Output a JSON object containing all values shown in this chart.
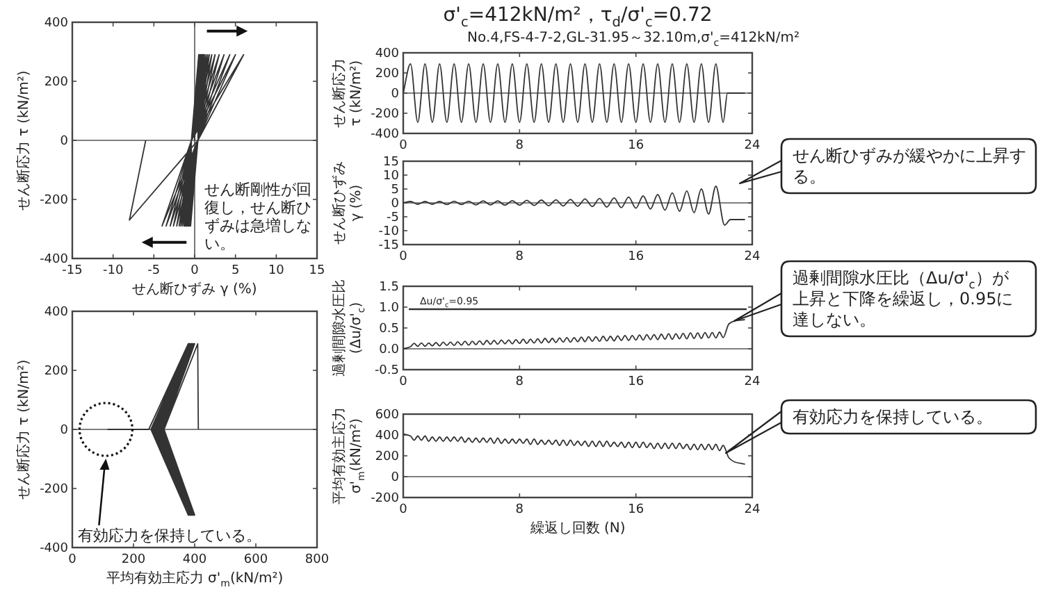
{
  "chart_data": [
    {
      "type": "line",
      "xlabel": "せん断ひずみ γ (%)",
      "ylabel": "せん断応力 τ (kN/m²)",
      "xlim": [
        -15,
        15
      ],
      "ylim": [
        -400,
        400
      ],
      "xticks": [
        -15,
        -10,
        -5,
        0,
        5,
        10,
        15
      ],
      "yticks": [
        -400,
        -200,
        0,
        200,
        400
      ],
      "color": "#333333",
      "x": [
        0,
        0.5,
        0.4,
        -0.5,
        -0.4,
        0.5,
        0.4,
        -0.5,
        -0.4,
        0.5,
        0.4,
        -0.6,
        -0.4,
        0.6,
        0.4,
        -0.6,
        -0.4,
        0.6,
        0.4,
        -0.7,
        -0.4,
        0.7,
        0.4,
        -0.7,
        -0.4,
        0.7,
        0.4,
        -0.8,
        -0.4,
        0.8,
        0.4,
        -0.8,
        -0.4,
        0.9,
        0.4,
        -0.9,
        -0.4,
        1.0,
        0.4,
        -1.0,
        -0.4,
        1.1,
        0.4,
        -1.1,
        -0.4,
        1.2,
        0.4,
        -1.2,
        -0.4,
        1.4,
        0.4,
        -1.3,
        -0.4,
        1.6,
        0.4,
        -1.5,
        -0.4,
        1.8,
        0.4,
        -1.7,
        -0.4,
        2.1,
        0.4,
        -1.9,
        -0.4,
        2.5,
        0.4,
        -2.2,
        -0.4,
        3.0,
        0.4,
        -2.6,
        -0.4,
        3.6,
        0.4,
        -3.0,
        -0.4,
        4.3,
        0.4,
        -3.5,
        -0.4,
        5.0,
        0.4,
        -4.0,
        -0.4,
        6.0,
        0.4,
        -8.0,
        -6.0
      ],
      "values": [
        0,
        290,
        0,
        -290,
        0,
        290,
        0,
        -290,
        0,
        290,
        0,
        -290,
        0,
        290,
        0,
        -290,
        0,
        290,
        0,
        -290,
        0,
        290,
        0,
        -290,
        0,
        290,
        0,
        -290,
        0,
        290,
        0,
        -290,
        0,
        290,
        0,
        -290,
        0,
        290,
        0,
        -290,
        0,
        290,
        0,
        -290,
        0,
        290,
        0,
        -290,
        0,
        290,
        0,
        -290,
        0,
        290,
        0,
        -290,
        0,
        290,
        0,
        -290,
        0,
        290,
        0,
        -290,
        0,
        290,
        0,
        -290,
        0,
        290,
        0,
        -290,
        0,
        290,
        0,
        -290,
        0,
        290,
        0,
        -290,
        0,
        290,
        0,
        -290,
        0,
        290,
        0,
        -270,
        0
      ],
      "annotations": [
        "せん断剛性が回復し，せん断ひずみは急増しない。"
      ]
    },
    {
      "type": "line",
      "xlabel": "平均有効主応力 σ'$_{m}$(kN/m²)",
      "ylabel": "せん断応力 τ (kN/m²)",
      "xlim": [
        0,
        800
      ],
      "ylim": [
        -400,
        400
      ],
      "xticks": [
        0,
        200,
        400,
        600,
        800
      ],
      "yticks": [
        -400,
        -200,
        0,
        200,
        400
      ],
      "color": "#333333",
      "x": [
        412,
        410,
        300,
        400,
        299,
        400,
        298,
        399,
        297,
        399,
        296,
        398,
        295,
        398,
        294,
        397,
        293,
        397,
        292,
        396,
        291,
        396,
        290,
        395,
        289,
        395,
        288,
        394,
        287,
        394,
        286,
        393,
        285,
        393,
        284,
        392,
        283,
        392,
        282,
        391,
        281,
        391,
        280,
        390,
        279,
        390,
        278,
        389,
        277,
        389,
        276,
        388,
        275,
        388,
        274,
        387,
        273,
        387,
        272,
        386,
        271,
        386,
        270,
        385,
        269,
        385,
        268,
        384,
        267,
        384,
        266,
        383,
        265,
        383,
        264,
        382,
        263,
        382,
        262,
        381,
        261,
        381,
        260,
        380,
        259,
        380,
        258,
        379,
        257,
        379,
        250,
        180,
        115
      ],
      "values": [
        0,
        290,
        0,
        -290,
        0,
        290,
        0,
        -290,
        0,
        290,
        0,
        -290,
        0,
        290,
        0,
        -290,
        0,
        290,
        0,
        -290,
        0,
        290,
        0,
        -290,
        0,
        290,
        0,
        -290,
        0,
        290,
        0,
        -290,
        0,
        290,
        0,
        -290,
        0,
        290,
        0,
        -290,
        0,
        290,
        0,
        -290,
        0,
        290,
        0,
        -290,
        0,
        290,
        0,
        -290,
        0,
        290,
        0,
        -290,
        0,
        290,
        0,
        -290,
        0,
        290,
        0,
        -290,
        0,
        290,
        0,
        -290,
        0,
        290,
        0,
        -290,
        0,
        290,
        0,
        -290,
        0,
        290,
        0,
        -290,
        0,
        290,
        0,
        -290,
        0,
        290,
        0,
        -290,
        0,
        290,
        0,
        0,
        0
      ],
      "annotations": [
        "有効応力を保持している。"
      ]
    },
    {
      "type": "line",
      "title": "σ'$_{c}$=412kN/m²，τ$_{d}$/σ'$_{c}$=0.72",
      "subtitle": "No.4,FS-4-7-2,GL-31.95～32.10m,σ'$_{c}$=412kN/m²",
      "ylabel": "せん断応力 τ (kN/m²)",
      "xlim": [
        0,
        24
      ],
      "ylim": [
        -400,
        400
      ],
      "xticks": [
        0,
        8,
        16,
        24
      ],
      "yticks": [
        -400,
        -200,
        0,
        200,
        400
      ],
      "color": "#333333",
      "x": [
        0,
        0.5,
        1,
        1.5,
        2,
        2.5,
        3,
        3.5,
        4,
        4.5,
        5,
        5.5,
        6,
        6.5,
        7,
        7.5,
        8,
        8.5,
        9,
        9.5,
        10,
        10.5,
        11,
        11.5,
        12,
        12.5,
        13,
        13.5,
        14,
        14.5,
        15,
        15.5,
        16,
        16.5,
        17,
        17.5,
        18,
        18.5,
        19,
        19.5,
        20,
        20.5,
        21,
        21.5,
        22,
        22.3,
        23.5
      ],
      "values": [
        0,
        290,
        -290,
        290,
        -290,
        290,
        -290,
        290,
        -290,
        290,
        -290,
        290,
        -290,
        290,
        -290,
        290,
        -290,
        290,
        -290,
        290,
        -290,
        290,
        -290,
        290,
        -290,
        290,
        -290,
        290,
        -290,
        290,
        -290,
        290,
        -290,
        290,
        -290,
        290,
        -290,
        290,
        -290,
        290,
        -290,
        290,
        -290,
        290,
        -290,
        0,
        0
      ]
    },
    {
      "type": "line",
      "ylabel": "せん断ひずみ γ (%)",
      "xlim": [
        0,
        24
      ],
      "ylim": [
        -15,
        15
      ],
      "xticks": [
        0,
        8,
        16,
        24
      ],
      "yticks": [
        -15,
        -10,
        -5,
        0,
        5,
        10,
        15
      ],
      "color": "#333333",
      "x": [
        0,
        0.5,
        1,
        1.5,
        2,
        2.5,
        3,
        3.5,
        4,
        4.5,
        5,
        5.5,
        6,
        6.5,
        7,
        7.5,
        8,
        8.5,
        9,
        9.5,
        10,
        10.5,
        11,
        11.5,
        12,
        12.5,
        13,
        13.5,
        14,
        14.5,
        15,
        15.5,
        16,
        16.5,
        17,
        17.5,
        18,
        18.5,
        19,
        19.5,
        20,
        20.5,
        21,
        21.5,
        22.1,
        22.5,
        23.5
      ],
      "values": [
        0,
        0.5,
        -0.5,
        0.5,
        -0.5,
        0.5,
        -0.6,
        0.6,
        -0.6,
        0.6,
        -0.7,
        0.7,
        -0.7,
        0.7,
        -0.8,
        0.8,
        -0.8,
        0.9,
        -0.9,
        1.0,
        -1.0,
        1.1,
        -1.1,
        1.2,
        -1.2,
        1.4,
        -1.3,
        1.6,
        -1.5,
        1.8,
        -1.7,
        2.1,
        -1.9,
        2.5,
        -2.2,
        3.0,
        -2.6,
        3.6,
        -3.0,
        4.3,
        -3.5,
        5.0,
        -4.0,
        6.0,
        -8,
        -6,
        -6
      ],
      "annotations": [
        "せん断ひずみが緩やかに上昇する。"
      ]
    },
    {
      "type": "line",
      "ylabel": "過剰間隙水圧比 (Δu/σ'$_{c}$)",
      "xlim": [
        0,
        24
      ],
      "ylim": [
        -0.5,
        1.5
      ],
      "xticks": [
        0,
        8,
        16,
        24
      ],
      "yticks": [
        {
          "value": -0.5,
          "label": "-0.5"
        },
        {
          "value": 0,
          "label": "0.0"
        },
        {
          "value": 0.5,
          "label": "0.5"
        },
        {
          "value": 1,
          "label": "1.0"
        },
        {
          "value": 1.5,
          "label": "1.5"
        }
      ],
      "color": "#333333",
      "ref_lines": [
        {
          "axis": "y",
          "value": 0.95,
          "label": "Δu/σ'$_{c}$=0.95"
        }
      ],
      "x": [
        0,
        0.5,
        0.75,
        1,
        1.25,
        1.5,
        1.75,
        2,
        2.25,
        2.5,
        2.75,
        3,
        3.25,
        3.5,
        3.75,
        4,
        4.25,
        4.5,
        4.75,
        5,
        5.25,
        5.5,
        5.75,
        6,
        6.25,
        6.5,
        6.75,
        7,
        7.25,
        7.5,
        7.75,
        8,
        8.25,
        8.5,
        8.75,
        9,
        9.25,
        9.5,
        9.75,
        10,
        10.25,
        10.5,
        10.75,
        11,
        11.25,
        11.5,
        11.75,
        12,
        12.25,
        12.5,
        12.75,
        13,
        13.25,
        13.5,
        13.75,
        14,
        14.25,
        14.5,
        14.75,
        15,
        15.25,
        15.5,
        15.75,
        16,
        16.25,
        16.5,
        16.75,
        17,
        17.25,
        17.5,
        17.75,
        18,
        18.25,
        18.5,
        18.75,
        19,
        19.25,
        19.5,
        19.75,
        20,
        20.25,
        20.5,
        20.75,
        21,
        21.25,
        21.5,
        21.75,
        22,
        22.4,
        22.8,
        23.5
      ],
      "values": [
        0,
        0.05,
        0.13,
        0.06,
        0.14,
        0.06,
        0.14,
        0.07,
        0.15,
        0.07,
        0.16,
        0.08,
        0.16,
        0.08,
        0.17,
        0.09,
        0.18,
        0.09,
        0.18,
        0.1,
        0.19,
        0.1,
        0.2,
        0.11,
        0.2,
        0.11,
        0.21,
        0.12,
        0.21,
        0.12,
        0.22,
        0.13,
        0.23,
        0.13,
        0.23,
        0.14,
        0.24,
        0.14,
        0.25,
        0.15,
        0.25,
        0.15,
        0.26,
        0.16,
        0.27,
        0.16,
        0.27,
        0.17,
        0.28,
        0.17,
        0.29,
        0.18,
        0.29,
        0.18,
        0.3,
        0.19,
        0.3,
        0.19,
        0.31,
        0.2,
        0.32,
        0.2,
        0.32,
        0.21,
        0.33,
        0.21,
        0.34,
        0.22,
        0.34,
        0.22,
        0.35,
        0.23,
        0.36,
        0.23,
        0.36,
        0.24,
        0.37,
        0.24,
        0.38,
        0.25,
        0.38,
        0.25,
        0.39,
        0.26,
        0.39,
        0.26,
        0.4,
        0.27,
        0.6,
        0.67,
        0.7
      ],
      "annotations": [
        "過剰間隙水圧比（Δu/σ'$_{c}$）が上昇と下降を繰返し，0.95に達しない。"
      ]
    },
    {
      "type": "line",
      "xlabel": "繰返し回数 (N)",
      "ylabel": "平均有効主応力 σ'$_{m}$(kN/m²)",
      "xlim": [
        0,
        24
      ],
      "ylim": [
        -200,
        600
      ],
      "xticks": [
        0,
        8,
        16,
        24
      ],
      "yticks": [
        -200,
        0,
        200,
        400,
        600
      ],
      "color": "#333333",
      "x": [
        0,
        0.5,
        0.75,
        1,
        1.25,
        1.5,
        1.75,
        2,
        2.25,
        2.5,
        2.75,
        3,
        3.25,
        3.5,
        3.75,
        4,
        4.25,
        4.5,
        4.75,
        5,
        5.25,
        5.5,
        5.75,
        6,
        6.25,
        6.5,
        6.75,
        7,
        7.25,
        7.5,
        7.75,
        8,
        8.25,
        8.5,
        8.75,
        9,
        9.25,
        9.5,
        9.75,
        10,
        10.25,
        10.5,
        10.75,
        11,
        11.25,
        11.5,
        11.75,
        12,
        12.25,
        12.5,
        12.75,
        13,
        13.25,
        13.5,
        13.75,
        14,
        14.25,
        14.5,
        14.75,
        15,
        15.25,
        15.5,
        15.75,
        16,
        16.25,
        16.5,
        16.75,
        17,
        17.25,
        17.5,
        17.75,
        18,
        18.25,
        18.5,
        18.75,
        19,
        19.25,
        19.5,
        19.75,
        20,
        20.25,
        20.5,
        20.75,
        21,
        21.25,
        21.5,
        21.75,
        22,
        22.4,
        22.8,
        23.5
      ],
      "values": [
        410,
        390,
        350,
        390,
        350,
        390,
        340,
        380,
        340,
        380,
        340,
        380,
        340,
        380,
        340,
        380,
        330,
        370,
        330,
        370,
        330,
        370,
        330,
        370,
        320,
        370,
        320,
        360,
        320,
        360,
        320,
        360,
        320,
        360,
        310,
        360,
        310,
        350,
        310,
        350,
        310,
        350,
        300,
        350,
        300,
        350,
        300,
        340,
        300,
        340,
        290,
        340,
        290,
        340,
        290,
        340,
        290,
        330,
        290,
        330,
        280,
        330,
        280,
        330,
        280,
        330,
        280,
        320,
        270,
        320,
        270,
        320,
        270,
        320,
        270,
        320,
        270,
        310,
        260,
        310,
        260,
        310,
        260,
        310,
        260,
        310,
        250,
        300,
        180,
        140,
        120
      ],
      "annotations": [
        "有効応力を保持している。"
      ]
    }
  ]
}
